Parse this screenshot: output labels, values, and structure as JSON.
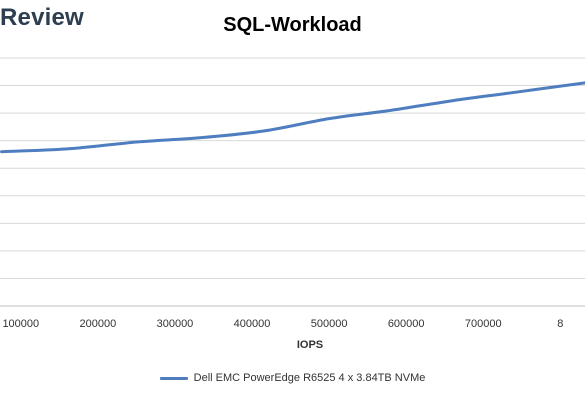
{
  "brand": {
    "text": "Review"
  },
  "chart_data": {
    "type": "line",
    "title": "SQL-Workload",
    "xlabel": "IOPS",
    "ylabel": "",
    "x_ticks": [
      "100000",
      "200000",
      "300000",
      "400000",
      "500000",
      "600000",
      "700000",
      "8"
    ],
    "xlim": [
      73000,
      832000
    ],
    "ylim": [
      0,
      9
    ],
    "grid": true,
    "legend_position": "bottom",
    "series": [
      {
        "name": "Dell EMC PowerEdge R6525 4 x 3.84TB NVMe",
        "color": "#4f7ec0",
        "points": [
          {
            "x": 75000,
            "y": 5.6
          },
          {
            "x": 160000,
            "y": 5.7
          },
          {
            "x": 250000,
            "y": 5.95
          },
          {
            "x": 330000,
            "y": 6.1
          },
          {
            "x": 415000,
            "y": 6.35
          },
          {
            "x": 500000,
            "y": 6.8
          },
          {
            "x": 580000,
            "y": 7.1
          },
          {
            "x": 660000,
            "y": 7.45
          },
          {
            "x": 740000,
            "y": 7.75
          },
          {
            "x": 832000,
            "y": 8.1
          }
        ]
      }
    ]
  }
}
